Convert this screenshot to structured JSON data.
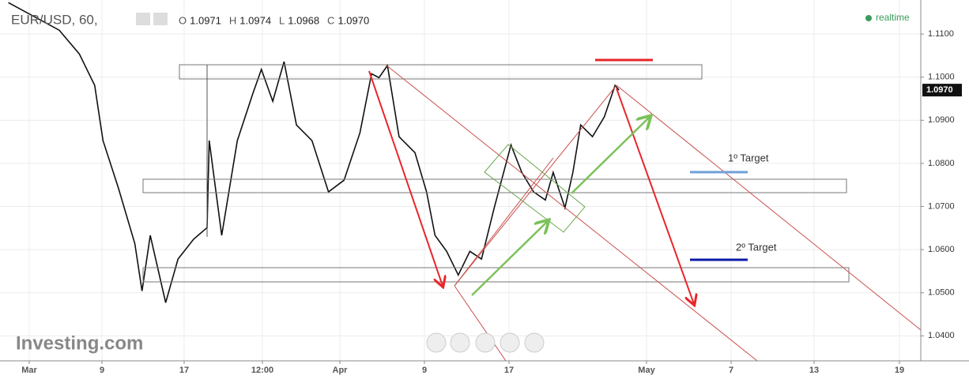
{
  "chart_data": {
    "type": "line",
    "title": "EUR/USD, 60,",
    "status": "realtime",
    "logo": "Investing.com",
    "ohlc": [
      {
        "key": "O",
        "value": "1.0971"
      },
      {
        "key": "H",
        "value": "1.0974"
      },
      {
        "key": "L",
        "value": "1.0968"
      },
      {
        "key": "C",
        "value": "1.0970"
      }
    ],
    "last": {
      "value": 1.097,
      "label": "1.0970"
    },
    "annotations": [
      "1º Target",
      "2º Target"
    ],
    "series": [
      {
        "name": "EUR/USD",
        "color": "#111111",
        "x": [
          -1.3,
          4.3,
          6.5,
          8.2,
          9.1,
          10.6,
          12.2,
          12.9,
          13.7,
          15.2,
          16.4,
          17.9,
          19.2,
          19.4,
          20.6,
          22.1,
          23.6,
          24.4,
          25.5,
          26.6,
          27.8,
          29.3,
          30.9,
          32.4,
          33.9,
          35.0,
          35.7,
          36.5,
          37.6,
          39.1,
          40.2,
          41.0,
          42.1,
          43.2,
          44.3,
          45.4,
          46.6,
          47.3,
          48.2,
          49.3,
          50.5,
          51.7,
          52.5,
          53.7,
          54.5,
          55.3,
          56.5,
          57.7,
          58.8,
          59.2
        ],
        "values": [
          1.1173,
          1.1109,
          1.1054,
          1.0981,
          1.0853,
          1.0743,
          1.0614,
          1.0504,
          1.0633,
          1.0477,
          1.0578,
          1.0624,
          1.0651,
          1.0853,
          1.0633,
          1.0853,
          1.0963,
          1.1018,
          1.0944,
          1.1036,
          1.0889,
          1.0853,
          1.0734,
          1.0761,
          1.0871,
          1.1008,
          1.0999,
          1.1027,
          1.0862,
          1.0825,
          1.0734,
          1.0633,
          1.0596,
          1.0541,
          1.0596,
          1.0578,
          1.0697,
          1.0761,
          1.0843,
          1.0779,
          1.0734,
          1.0715,
          1.0779,
          1.0697,
          1.0779,
          1.0889,
          1.0862,
          1.0908,
          1.0981,
          1.097
        ]
      }
    ],
    "xlim": [
      -1.3,
      81.5
    ],
    "xticks": [
      {
        "value": 1,
        "label": "Mar"
      },
      9,
      17,
      {
        "value": 24.5,
        "label": "12:00"
      },
      {
        "value": 32,
        "label": "Apr"
      },
      {
        "value": 40,
        "label": "9"
      },
      {
        "value": 48,
        "label": "17"
      },
      {
        "value": 62,
        "label": "May"
      },
      {
        "value": 68,
        "label": "7"
      },
      {
        "value": 74,
        "label": "13"
      },
      {
        "value": 80,
        "label": "19"
      }
    ],
    "ylim": [
      1.0342,
      1.1179
    ],
    "yticks": [
      {
        "value": 1.04,
        "label": "1.0400"
      },
      {
        "value": 1.05,
        "label": "1.0500"
      },
      {
        "value": 1.06,
        "label": "1.0600"
      },
      {
        "value": 1.07,
        "label": "1.0700"
      },
      {
        "value": 1.08,
        "label": "1.0800"
      },
      {
        "value": 1.09,
        "label": "1.0900"
      },
      {
        "value": 1.1,
        "label": "1.1000"
      },
      {
        "value": 1.11,
        "label": "1.1100"
      }
    ],
    "grid": true
  }
}
